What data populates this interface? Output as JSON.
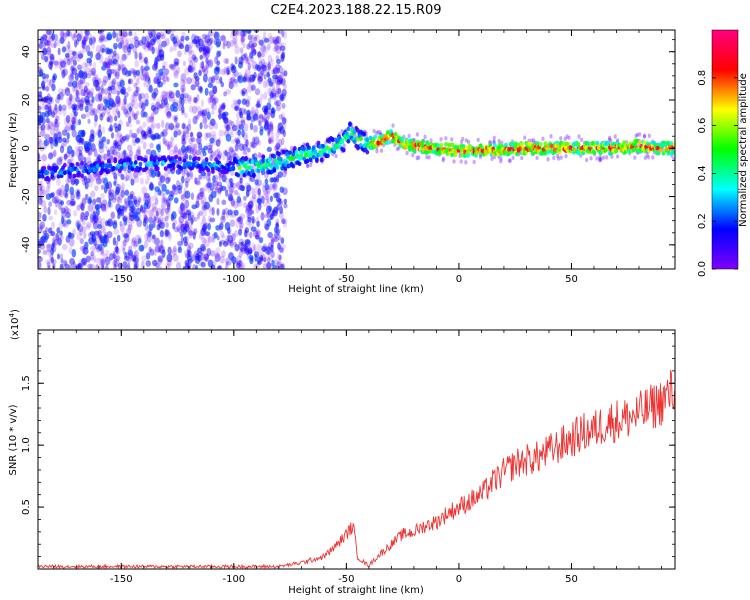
{
  "title": "C2E4.2023.188.22.15.R09",
  "chart_data": [
    {
      "type": "heatmap",
      "xlabel": "Height of straight line (km)",
      "ylabel": "Frequency (Hz)",
      "xlim": [
        -187,
        96
      ],
      "ylim": [
        -50,
        49
      ],
      "xticks": [
        -150,
        -100,
        -50,
        0,
        50
      ],
      "yticks": [
        -40,
        -20,
        0,
        20,
        40
      ],
      "ridge": {
        "x": [
          -187,
          -170,
          -150,
          -130,
          -110,
          -95,
          -85,
          -70,
          -60,
          -52,
          -48,
          -45,
          -40,
          -35,
          -30,
          -25,
          -20,
          -10,
          0,
          10,
          30,
          50,
          60,
          70,
          80,
          90,
          96
        ],
        "y": [
          -11,
          -9,
          -7,
          -6,
          -7,
          -8,
          -7,
          -3,
          -1,
          2,
          7,
          4,
          2,
          3,
          5,
          2,
          1,
          0,
          -1,
          -1,
          0,
          0,
          0,
          0,
          1,
          0,
          0
        ]
      },
      "colorbar": {
        "label": "Normalized spectral amplitude",
        "ticks": [
          0.0,
          0.2,
          0.4,
          0.6,
          0.8
        ],
        "range": [
          0,
          1
        ],
        "colormap": [
          "#8000ff",
          "#0000ff",
          "#00ffff",
          "#00ff00",
          "#ffff00",
          "#ff0000",
          "#ff0080"
        ]
      }
    },
    {
      "type": "line",
      "xlabel": "Height of straight line (km)",
      "ylabel": "SNR (10 * v/v)",
      "exponent_label": "(x10",
      "exponent_power": "4",
      "exponent_close": ")",
      "xlim": [
        -187,
        96
      ],
      "ylim": [
        0,
        1.93
      ],
      "xticks": [
        -150,
        -100,
        -50,
        0,
        50
      ],
      "yticks": [
        0.5,
        1.0,
        1.5
      ],
      "ytick_labels": [
        "0.5",
        "1.0",
        "1.5"
      ],
      "color": "#ee3333",
      "series": [
        {
          "x": [
            -187,
            -150,
            -120,
            -100,
            -80,
            -70,
            -60,
            -55,
            -50,
            -47,
            -45,
            -42,
            -40,
            -35,
            -30,
            -25,
            -20,
            -15,
            -10,
            -5,
            0,
            5,
            10,
            15,
            20,
            25,
            30,
            35,
            40,
            45,
            50,
            55,
            60,
            65,
            70,
            75,
            80,
            85,
            90,
            96
          ],
          "y": [
            0.02,
            0.02,
            0.02,
            0.02,
            0.02,
            0.05,
            0.1,
            0.18,
            0.28,
            0.35,
            0.1,
            0.05,
            0.03,
            0.12,
            0.2,
            0.28,
            0.3,
            0.35,
            0.38,
            0.45,
            0.5,
            0.55,
            0.6,
            0.7,
            0.78,
            0.85,
            0.88,
            0.9,
            0.95,
            1.0,
            1.05,
            1.1,
            1.12,
            1.18,
            1.2,
            1.22,
            1.25,
            1.3,
            1.35,
            1.45
          ]
        }
      ]
    }
  ]
}
